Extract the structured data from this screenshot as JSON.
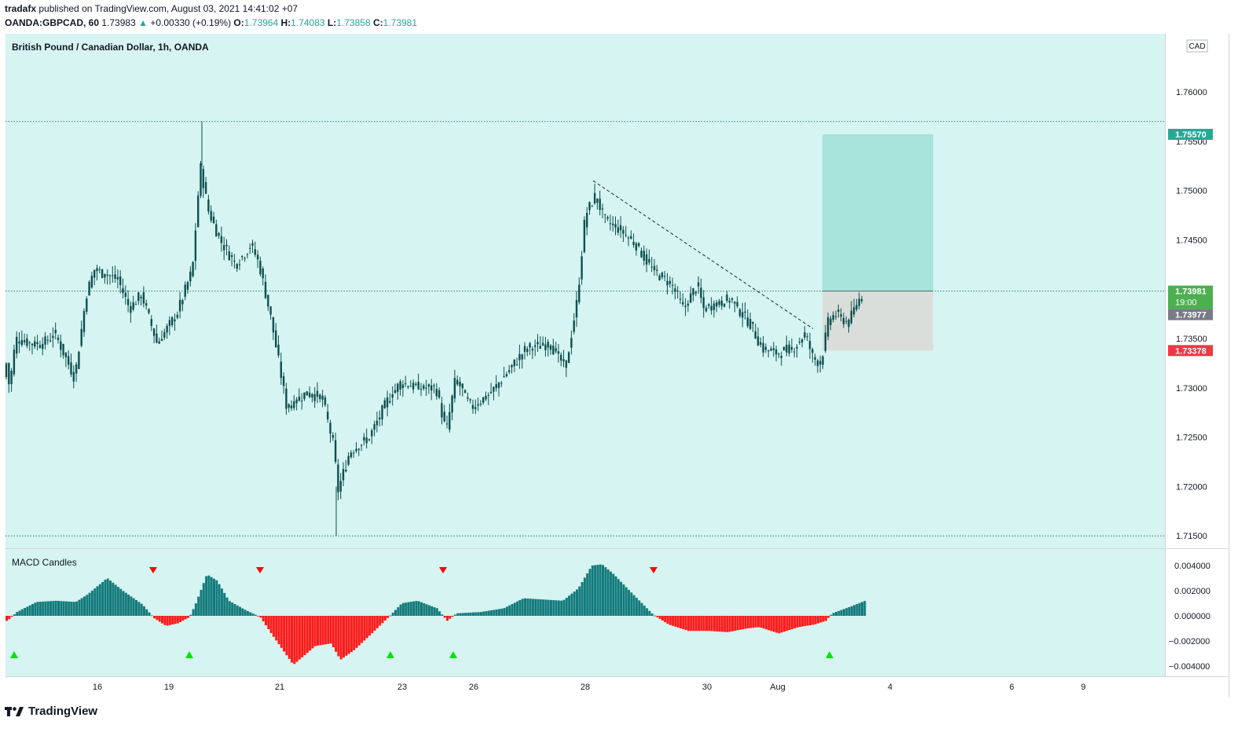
{
  "header": {
    "publisher": "tradafx",
    "published_text": "published on TradingView.com, August 03, 2021 14:41:02 +07",
    "symbol": "OANDA:GBPCAD, 60",
    "last": "1.73983",
    "change": "+0.00330 (+0.19%)",
    "o_label": "O:",
    "o": "1.73964",
    "h_label": "H:",
    "h": "1.74083",
    "l_label": "L:",
    "l": "1.73858",
    "c_label": "C:",
    "c": "1.73981"
  },
  "footer": {
    "brand": "TradingView"
  },
  "chart_data": [
    {
      "type": "candlestick",
      "title": "British Pound / Canadian Dollar, 1h, OANDA",
      "currency": "CAD",
      "ylim": [
        1.715,
        1.765
      ],
      "y_ticks": [
        "1.76000",
        "1.75500",
        "1.75000",
        "1.74500",
        "1.74000",
        "1.73500",
        "1.73000",
        "1.72500",
        "1.72000",
        "1.71500"
      ],
      "x_ticks": [
        "16",
        "19",
        "21",
        "23",
        "26",
        "28",
        "30",
        "Aug",
        "4",
        "6",
        "9"
      ],
      "price_path": [
        [
          0,
          1.729
        ],
        [
          8,
          1.7325
        ],
        [
          12,
          1.73
        ],
        [
          20,
          1.735
        ],
        [
          40,
          1.7345
        ],
        [
          55,
          1.7345
        ],
        [
          70,
          1.7355
        ],
        [
          95,
          1.731
        ],
        [
          110,
          1.7395
        ],
        [
          120,
          1.742
        ],
        [
          150,
          1.741
        ],
        [
          165,
          1.738
        ],
        [
          180,
          1.7395
        ],
        [
          200,
          1.7345
        ],
        [
          225,
          1.7375
        ],
        [
          245,
          1.742
        ],
        [
          255,
          1.7525
        ],
        [
          265,
          1.748
        ],
        [
          280,
          1.745
        ],
        [
          300,
          1.7425
        ],
        [
          320,
          1.7445
        ],
        [
          330,
          1.7425
        ],
        [
          345,
          1.737
        ],
        [
          365,
          1.728
        ],
        [
          390,
          1.7295
        ],
        [
          410,
          1.729
        ],
        [
          425,
          1.724
        ],
        [
          430,
          1.7195
        ],
        [
          445,
          1.7235
        ],
        [
          470,
          1.725
        ],
        [
          495,
          1.729
        ],
        [
          510,
          1.7305
        ],
        [
          535,
          1.73
        ],
        [
          555,
          1.73
        ],
        [
          568,
          1.7255
        ],
        [
          580,
          1.731
        ],
        [
          600,
          1.728
        ],
        [
          625,
          1.7295
        ],
        [
          650,
          1.732
        ],
        [
          670,
          1.734
        ],
        [
          700,
          1.7345
        ],
        [
          720,
          1.732
        ],
        [
          735,
          1.739
        ],
        [
          745,
          1.7475
        ],
        [
          758,
          1.7495
        ],
        [
          770,
          1.747
        ],
        [
          790,
          1.746
        ],
        [
          810,
          1.7445
        ],
        [
          830,
          1.742
        ],
        [
          855,
          1.7405
        ],
        [
          870,
          1.738
        ],
        [
          888,
          1.7405
        ],
        [
          895,
          1.738
        ],
        [
          910,
          1.7385
        ],
        [
          930,
          1.739
        ],
        [
          955,
          1.7365
        ],
        [
          970,
          1.734
        ],
        [
          990,
          1.7335
        ],
        [
          1010,
          1.734
        ],
        [
          1025,
          1.7355
        ],
        [
          1035,
          1.733
        ],
        [
          1045,
          1.7325
        ],
        [
          1055,
          1.737
        ],
        [
          1065,
          1.7375
        ],
        [
          1080,
          1.7365
        ],
        [
          1090,
          1.7385
        ],
        [
          1100,
          1.7398
        ]
      ],
      "swing_high": 1.757,
      "swing_low": 1.715,
      "trendline": [
        [
          755,
          1.751
        ],
        [
          1035,
          1.736
        ]
      ],
      "position": {
        "entry": 1.73981,
        "target": 1.7557,
        "stop": 1.73378,
        "x_start": 1047,
        "x_end": 1188
      },
      "price_labels": [
        {
          "text": "1.75570",
          "value": 1.7557,
          "color": "#22ab94"
        },
        {
          "text": "1.73981",
          "sub": "19:00",
          "value": 1.73981,
          "color": "#4caf50"
        },
        {
          "text": "1.73977",
          "value": 1.73977,
          "color": "#787b86"
        },
        {
          "text": "1.73378",
          "value": 1.73378,
          "color": "#f23645"
        }
      ]
    },
    {
      "type": "bar",
      "title": "MACD Candles",
      "ylim": [
        -0.0042,
        0.0044
      ],
      "y_ticks": [
        "0.004000",
        "0.002000",
        "0.000000",
        "−0.002000",
        "−0.004000"
      ],
      "macd_path": [
        [
          8,
          -0.0004
        ],
        [
          20,
          0.0003
        ],
        [
          45,
          0.0011
        ],
        [
          70,
          0.0012
        ],
        [
          95,
          0.0011
        ],
        [
          110,
          0.0017
        ],
        [
          135,
          0.003
        ],
        [
          155,
          0.002
        ],
        [
          180,
          0.0009
        ],
        [
          195,
          -0.0002
        ],
        [
          210,
          -0.0008
        ],
        [
          225,
          -0.0006
        ],
        [
          240,
          -0.0001
        ],
        [
          248,
          0.001
        ],
        [
          262,
          0.0033
        ],
        [
          275,
          0.0028
        ],
        [
          290,
          0.0012
        ],
        [
          310,
          0.0005
        ],
        [
          330,
          -0.0001
        ],
        [
          345,
          -0.0015
        ],
        [
          372,
          -0.0039
        ],
        [
          400,
          -0.0024
        ],
        [
          420,
          -0.0022
        ],
        [
          432,
          -0.0035
        ],
        [
          450,
          -0.0027
        ],
        [
          472,
          -0.0014
        ],
        [
          495,
          0.0
        ],
        [
          510,
          0.001
        ],
        [
          530,
          0.0012
        ],
        [
          555,
          0.0006
        ],
        [
          568,
          -0.0004
        ],
        [
          580,
          0.0002
        ],
        [
          610,
          0.0003
        ],
        [
          640,
          0.0006
        ],
        [
          665,
          0.0014
        ],
        [
          690,
          0.0013
        ],
        [
          715,
          0.0012
        ],
        [
          735,
          0.0022
        ],
        [
          752,
          0.004
        ],
        [
          765,
          0.0041
        ],
        [
          780,
          0.0033
        ],
        [
          800,
          0.002
        ],
        [
          830,
          0.0001
        ],
        [
          850,
          -0.0007
        ],
        [
          875,
          -0.0012
        ],
        [
          900,
          -0.0012
        ],
        [
          925,
          -0.0013
        ],
        [
          950,
          -0.001
        ],
        [
          965,
          -0.0009
        ],
        [
          990,
          -0.0014
        ],
        [
          1015,
          -0.0009
        ],
        [
          1035,
          -0.0007
        ],
        [
          1050,
          -0.0004
        ],
        [
          1058,
          0.0002
        ],
        [
          1080,
          0.0007
        ],
        [
          1100,
          0.0012
        ]
      ],
      "sell_signals_x": [
        195,
        331,
        564,
        832
      ],
      "buy_signals_x": [
        18,
        241,
        497,
        577,
        1056
      ],
      "colors": {
        "positive": "#137b7b",
        "negative": "#ff1a1a",
        "buy": "#00e600",
        "sell": "#ff0000"
      }
    }
  ],
  "colors": {
    "background": "#d5f4f2",
    "candle": "#0e4f4f",
    "grid_dotted": "#3d7d7d",
    "profit_zone": "#a8e3dc",
    "loss_zone": "#dadedb"
  }
}
